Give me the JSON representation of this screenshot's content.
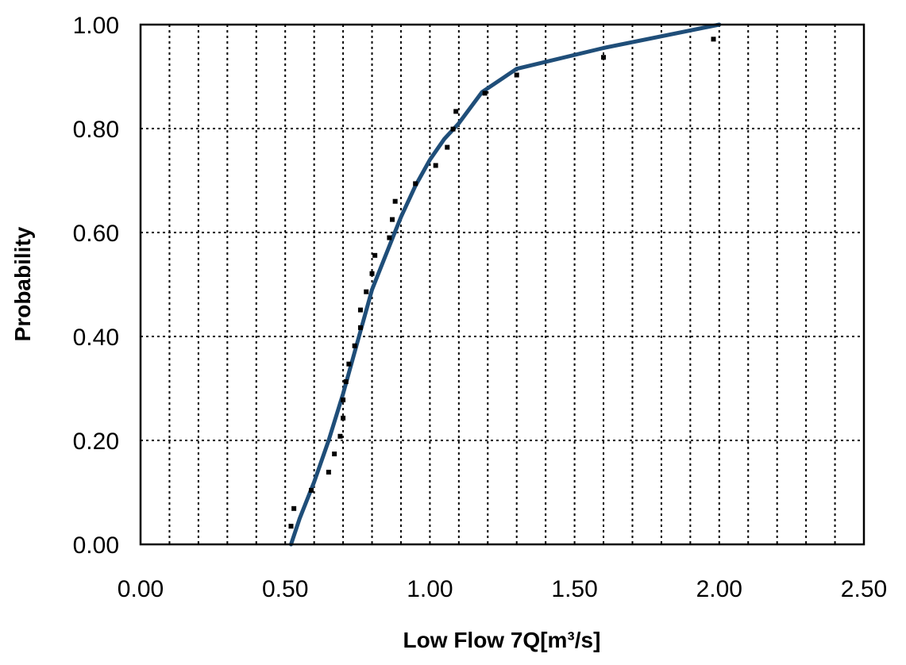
{
  "chart_data": {
    "type": "scatter",
    "title": "",
    "xlabel": "Low Flow 7Q[m³/s]",
    "ylabel": "Probability",
    "xlim": [
      0,
      2.5
    ],
    "ylim": [
      0,
      1
    ],
    "x_ticks": [
      "0.00",
      "0.50",
      "1.00",
      "1.50",
      "2.00",
      "2.50"
    ],
    "y_ticks": [
      "0.00",
      "0.20",
      "0.40",
      "0.60",
      "0.80",
      "1.00"
    ],
    "grid": true,
    "legend": "none",
    "series": [
      {
        "kind": "line",
        "color": "#1f4e79",
        "points": [
          [
            0.52,
            0.0
          ],
          [
            0.55,
            0.05
          ],
          [
            0.6,
            0.12
          ],
          [
            0.65,
            0.2
          ],
          [
            0.7,
            0.29
          ],
          [
            0.75,
            0.39
          ],
          [
            0.8,
            0.49
          ],
          [
            0.85,
            0.56
          ],
          [
            0.9,
            0.63
          ],
          [
            0.95,
            0.69
          ],
          [
            1.0,
            0.74
          ],
          [
            1.05,
            0.78
          ],
          [
            1.1,
            0.81
          ],
          [
            1.18,
            0.87
          ],
          [
            1.3,
            0.915
          ],
          [
            1.6,
            0.955
          ],
          [
            2.0,
            1.0
          ]
        ]
      },
      {
        "kind": "points",
        "color": "#000000",
        "points": [
          [
            0.52,
            0.035
          ],
          [
            0.53,
            0.069
          ],
          [
            0.59,
            0.104
          ],
          [
            0.65,
            0.139
          ],
          [
            0.67,
            0.174
          ],
          [
            0.69,
            0.208
          ],
          [
            0.7,
            0.243
          ],
          [
            0.7,
            0.278
          ],
          [
            0.71,
            0.313
          ],
          [
            0.72,
            0.347
          ],
          [
            0.74,
            0.382
          ],
          [
            0.76,
            0.417
          ],
          [
            0.76,
            0.451
          ],
          [
            0.78,
            0.486
          ],
          [
            0.8,
            0.521
          ],
          [
            0.81,
            0.556
          ],
          [
            0.86,
            0.59
          ],
          [
            0.87,
            0.625
          ],
          [
            0.88,
            0.66
          ],
          [
            0.95,
            0.694
          ],
          [
            1.02,
            0.729
          ],
          [
            1.06,
            0.764
          ],
          [
            1.08,
            0.799
          ],
          [
            1.09,
            0.833
          ],
          [
            1.19,
            0.868
          ],
          [
            1.3,
            0.903
          ],
          [
            1.6,
            0.937
          ],
          [
            1.98,
            0.972
          ]
        ]
      }
    ]
  }
}
